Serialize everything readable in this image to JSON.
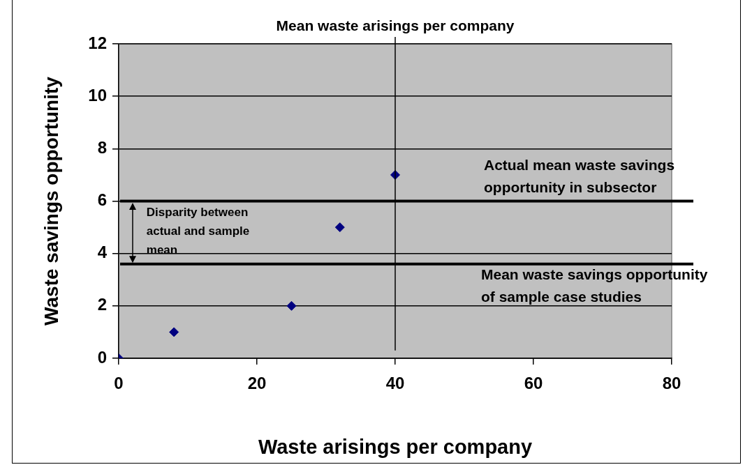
{
  "chart_data": {
    "type": "scatter",
    "xlabel": "Waste arisings per company",
    "ylabel": "Waste savings opportunity",
    "x": [
      0,
      8,
      25,
      32,
      40
    ],
    "values": [
      0,
      1,
      2,
      5,
      7
    ],
    "color": "#000080",
    "marker": "diamond",
    "xlim": [
      0,
      80
    ],
    "xticks": [
      0,
      20,
      40,
      60,
      80
    ],
    "ylim": [
      0,
      12
    ],
    "yticks": [
      0,
      2,
      4,
      6,
      8,
      10,
      12
    ],
    "grid": "y",
    "legend": false,
    "ref_lines": [
      {
        "axis": "y",
        "value": 6,
        "label": "Actual mean waste savings opportunity in subsector"
      },
      {
        "axis": "y",
        "value": 3.6,
        "label": "Mean waste savings opportunity of sample case studies"
      },
      {
        "axis": "x",
        "value": 40,
        "label": "Mean waste arisings per company"
      }
    ],
    "annotations": [
      {
        "text": "Disparity between actual and sample mean",
        "x": 2,
        "y": 6
      }
    ]
  }
}
